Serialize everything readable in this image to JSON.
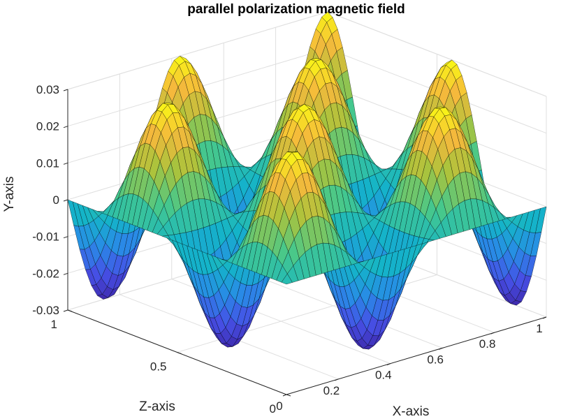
{
  "chart_data": {
    "type": "surface",
    "title": "parallel polarization magnetic field",
    "xlabel": "X-axis",
    "ylabel": "Y-axis",
    "zlabel": "Z-axis",
    "xlim": [
      0,
      1
    ],
    "zlim": [
      0,
      1
    ],
    "ylim": [
      -0.03,
      0.03
    ],
    "x_ticks": [
      "0",
      "0.2",
      "0.4",
      "0.6",
      "0.8",
      "1"
    ],
    "z_ticks": [
      "0",
      "0.5",
      "1"
    ],
    "y_ticks": [
      "-0.03",
      "-0.02",
      "-0.01",
      "0",
      "0.01",
      "0.02",
      "0.03"
    ],
    "surface": {
      "function": "0.03 * sin(3.5*pi*x) * sin(3.5*pi*z)",
      "amplitude": 0.03,
      "x_cycles": 1.75,
      "z_cycles": 1.75,
      "colormap": "parula",
      "edge_color": "#000000"
    },
    "grid": true
  }
}
